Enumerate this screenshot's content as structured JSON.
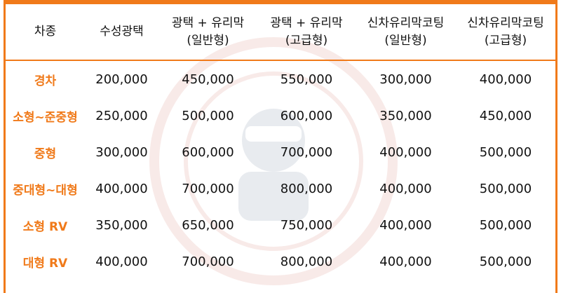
{
  "header": {
    "car_type": "차종",
    "col1": [
      "수성광택"
    ],
    "col2": [
      "광택 + 유리막",
      "(일반형)"
    ],
    "col3": [
      "광택 + 유리막",
      "(고급형)"
    ],
    "col4": [
      "신차유리막코팅",
      "(일반형)"
    ],
    "col5": [
      "신차유리막코팅",
      "(고급형)"
    ]
  },
  "rows": [
    {
      "car": "경차",
      "prices": [
        "200,000",
        "450,000",
        "550,000",
        "300,000",
        "400,000"
      ]
    },
    {
      "car": "소형~준중형",
      "prices": [
        "250,000",
        "500,000",
        "600,000",
        "350,000",
        "450,000"
      ]
    },
    {
      "car": "중형",
      "prices": [
        "300,000",
        "600,000",
        "700,000",
        "400,000",
        "500,000"
      ]
    },
    {
      "car": "중대형~대형",
      "prices": [
        "400,000",
        "700,000",
        "800,000",
        "400,000",
        "500,000"
      ]
    },
    {
      "car": "소형 RV",
      "prices": [
        "350,000",
        "650,000",
        "750,000",
        "400,000",
        "500,000"
      ]
    },
    {
      "car": "대형 RV",
      "prices": [
        "400,000",
        "700,000",
        "800,000",
        "400,000",
        "500,000"
      ]
    }
  ],
  "colors": {
    "accent": "#f07a1a",
    "text": "#111111"
  },
  "watermark_icon": "mascot-seal-icon"
}
